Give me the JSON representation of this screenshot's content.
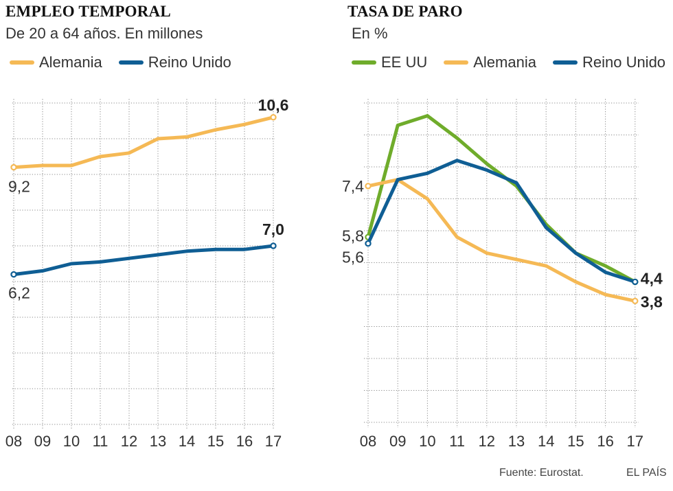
{
  "colors": {
    "alemania": "#f5b955",
    "reino_unido": "#0f5e94",
    "ee_uu": "#6fac2b",
    "grid": "#888888",
    "text": "#333333"
  },
  "chart_data": [
    {
      "type": "line",
      "title": "EMPLEO TEMPORAL",
      "subtitle": "De 20 a 64 años. En millones",
      "xlabel": "",
      "ylabel": "",
      "categories": [
        "08",
        "09",
        "10",
        "11",
        "12",
        "13",
        "14",
        "15",
        "16",
        "17"
      ],
      "ylim": [
        2.0,
        11.0
      ],
      "grid": "dotted horizontal and vertical",
      "legend_position": "top-left",
      "series": [
        {
          "name": "Alemania",
          "color": "#f5b955",
          "values": [
            9.2,
            9.25,
            9.25,
            9.5,
            9.6,
            10.0,
            10.05,
            10.25,
            10.4,
            10.6
          ],
          "start_label": "9,2",
          "end_label": "10,6"
        },
        {
          "name": "Reino Unido",
          "color": "#0f5e94",
          "values": [
            6.2,
            6.3,
            6.5,
            6.55,
            6.65,
            6.75,
            6.85,
            6.9,
            6.9,
            7.0
          ],
          "start_label": "6,2",
          "end_label": "7,0"
        }
      ]
    },
    {
      "type": "line",
      "title": "TASA DE PARO",
      "subtitle": "En %",
      "xlabel": "",
      "ylabel": "",
      "categories": [
        "08",
        "09",
        "10",
        "11",
        "12",
        "13",
        "14",
        "15",
        "16",
        "17"
      ],
      "ylim": [
        0.0,
        10.0
      ],
      "grid": "dotted horizontal and vertical",
      "legend_position": "top-left",
      "series": [
        {
          "name": "EE UU",
          "color": "#6fac2b",
          "values": [
            5.8,
            9.3,
            9.6,
            8.9,
            8.1,
            7.4,
            6.2,
            5.3,
            4.9,
            4.4
          ],
          "start_label": "5,8",
          "end_label": "4,4"
        },
        {
          "name": "Alemania",
          "color": "#f5b955",
          "values": [
            7.4,
            7.6,
            7.0,
            5.8,
            5.3,
            5.1,
            4.9,
            4.4,
            4.0,
            3.8
          ],
          "start_label": "7,4",
          "end_label": "3,8"
        },
        {
          "name": "Reino Unido",
          "color": "#0f5e94",
          "values": [
            5.6,
            7.6,
            7.8,
            8.2,
            7.9,
            7.5,
            6.1,
            5.3,
            4.7,
            4.4
          ],
          "start_label": "5,6",
          "end_label": "4,4"
        }
      ]
    }
  ],
  "footer": {
    "source": "Fuente: Eurostat.",
    "brand": "EL PAÍS"
  }
}
